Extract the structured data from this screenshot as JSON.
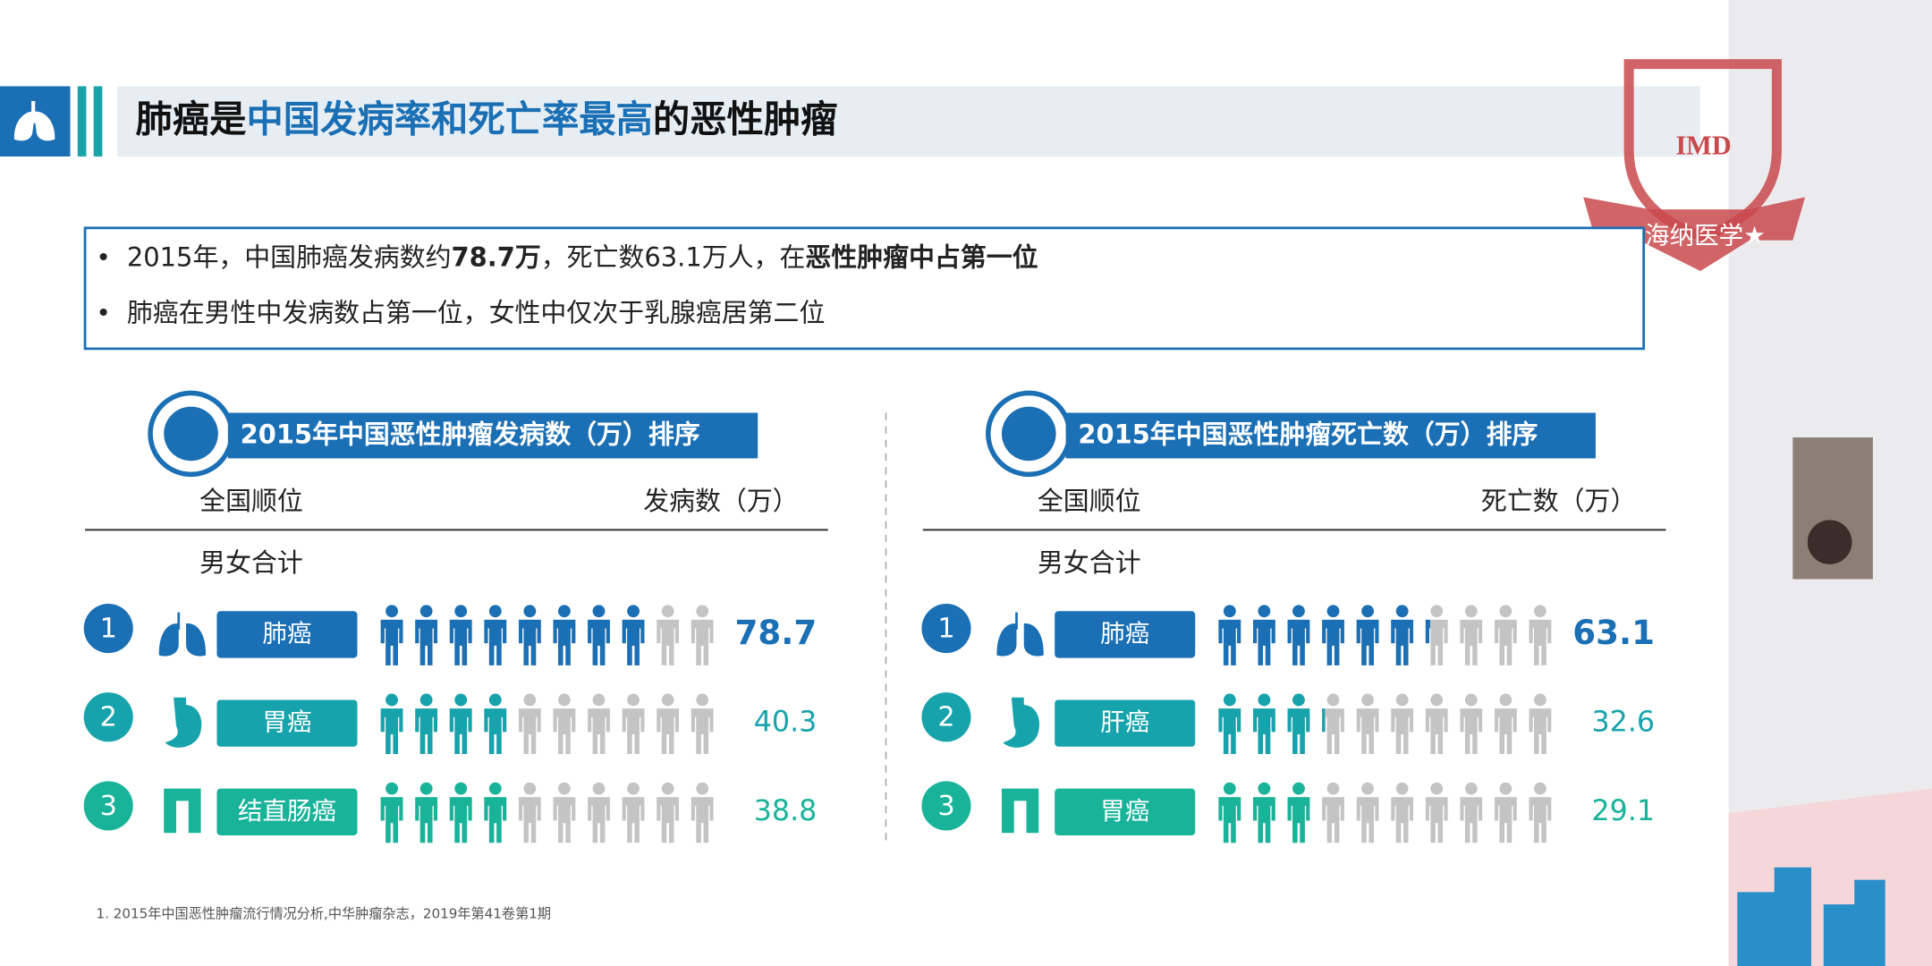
{
  "header": {
    "title_parts": [
      "肺癌是",
      "中国发病率和死亡率最高",
      "的恶性肿瘤"
    ]
  },
  "logo": {
    "text": "IMD",
    "name": "★海纳医学★"
  },
  "bullets": [
    [
      "2015年，中国肺癌发病数约",
      "78.7万",
      "，死亡数63.1万人，在",
      "恶性肿瘤中占第一位"
    ],
    [
      "肺癌在男性中发病数占第一位，女性中仅次于乳腺癌居第二位"
    ]
  ],
  "panels": [
    {
      "title": "2015年中国恶性肿瘤发病数（万）排序",
      "col_rank": "全国顺位",
      "col_value": "发病数（万）",
      "group": "男女合计",
      "rows": [
        {
          "rank": 1,
          "name": "肺癌",
          "value": 78.7
        },
        {
          "rank": 2,
          "name": "胃癌",
          "value": 40.3
        },
        {
          "rank": 3,
          "name": "结直肠癌",
          "value": 38.8
        }
      ]
    },
    {
      "title": "2015年中国恶性肿瘤死亡数（万）排序",
      "col_rank": "全国顺位",
      "col_value": "死亡数（万）",
      "group": "男女合计",
      "rows": [
        {
          "rank": 1,
          "name": "肺癌",
          "value": 63.1
        },
        {
          "rank": 2,
          "name": "肝癌",
          "value": 32.6
        },
        {
          "rank": 3,
          "name": "胃癌",
          "value": 29.1
        }
      ]
    }
  ],
  "footnote": "1. 2015年中国恶性肿瘤流行情况分析,中华肿瘤杂志，2019年第41卷第1期"
}
